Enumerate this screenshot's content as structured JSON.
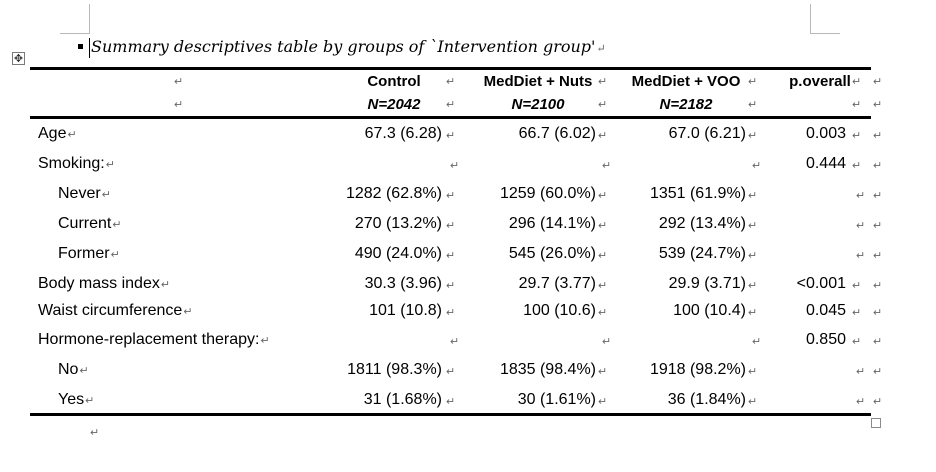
{
  "caption": "Summary descriptives table by groups of `Intervention group'",
  "marks": {
    "cell_end": "↵",
    "row_end": "↵"
  },
  "icons": {
    "move_handle": "move-crosshair-icon",
    "resize_handle": "resize-square-icon"
  },
  "table": {
    "columns": [
      {
        "label": "Control",
        "n": "N=2042"
      },
      {
        "label": "MedDiet + Nuts",
        "n": "N=2100"
      },
      {
        "label": "MedDiet + VOO",
        "n": "N=2182"
      },
      {
        "label": "p.overall",
        "n": ""
      }
    ],
    "rows": [
      {
        "label": "Age",
        "indent": false,
        "values": [
          "67.3 (6.28)",
          "66.7 (6.02)",
          "67.0 (6.21)",
          "0.003"
        ]
      },
      {
        "label": "Smoking:",
        "indent": false,
        "values": [
          "",
          "",
          "",
          "0.444"
        ]
      },
      {
        "label": "Never",
        "indent": true,
        "values": [
          "1282 (62.8%)",
          "1259 (60.0%)",
          "1351 (61.9%)",
          ""
        ]
      },
      {
        "label": "Current",
        "indent": true,
        "values": [
          "270 (13.2%)",
          "296 (14.1%)",
          "292 (13.4%)",
          ""
        ]
      },
      {
        "label": "Former",
        "indent": true,
        "values": [
          "490 (24.0%)",
          "545 (26.0%)",
          "539 (24.7%)",
          ""
        ]
      },
      {
        "label": "Body mass index",
        "indent": false,
        "values": [
          "30.3 (3.96)",
          "29.7 (3.77)",
          "29.9 (3.71)",
          "<0.001"
        ]
      },
      {
        "label": "Waist circumference",
        "indent": false,
        "values": [
          "101 (10.8)",
          "100 (10.6)",
          "100 (10.4)",
          "0.045"
        ]
      },
      {
        "label": "Hormone-replacement therapy:",
        "indent": false,
        "values": [
          "",
          "",
          "",
          "0.850"
        ]
      },
      {
        "label": "No",
        "indent": true,
        "values": [
          "1811 (98.3%)",
          "1835 (98.4%)",
          "1918 (98.2%)",
          ""
        ]
      },
      {
        "label": "Yes",
        "indent": true,
        "values": [
          "31 (1.68%)",
          "30 (1.61%)",
          "36 (1.84%)",
          ""
        ]
      }
    ]
  }
}
